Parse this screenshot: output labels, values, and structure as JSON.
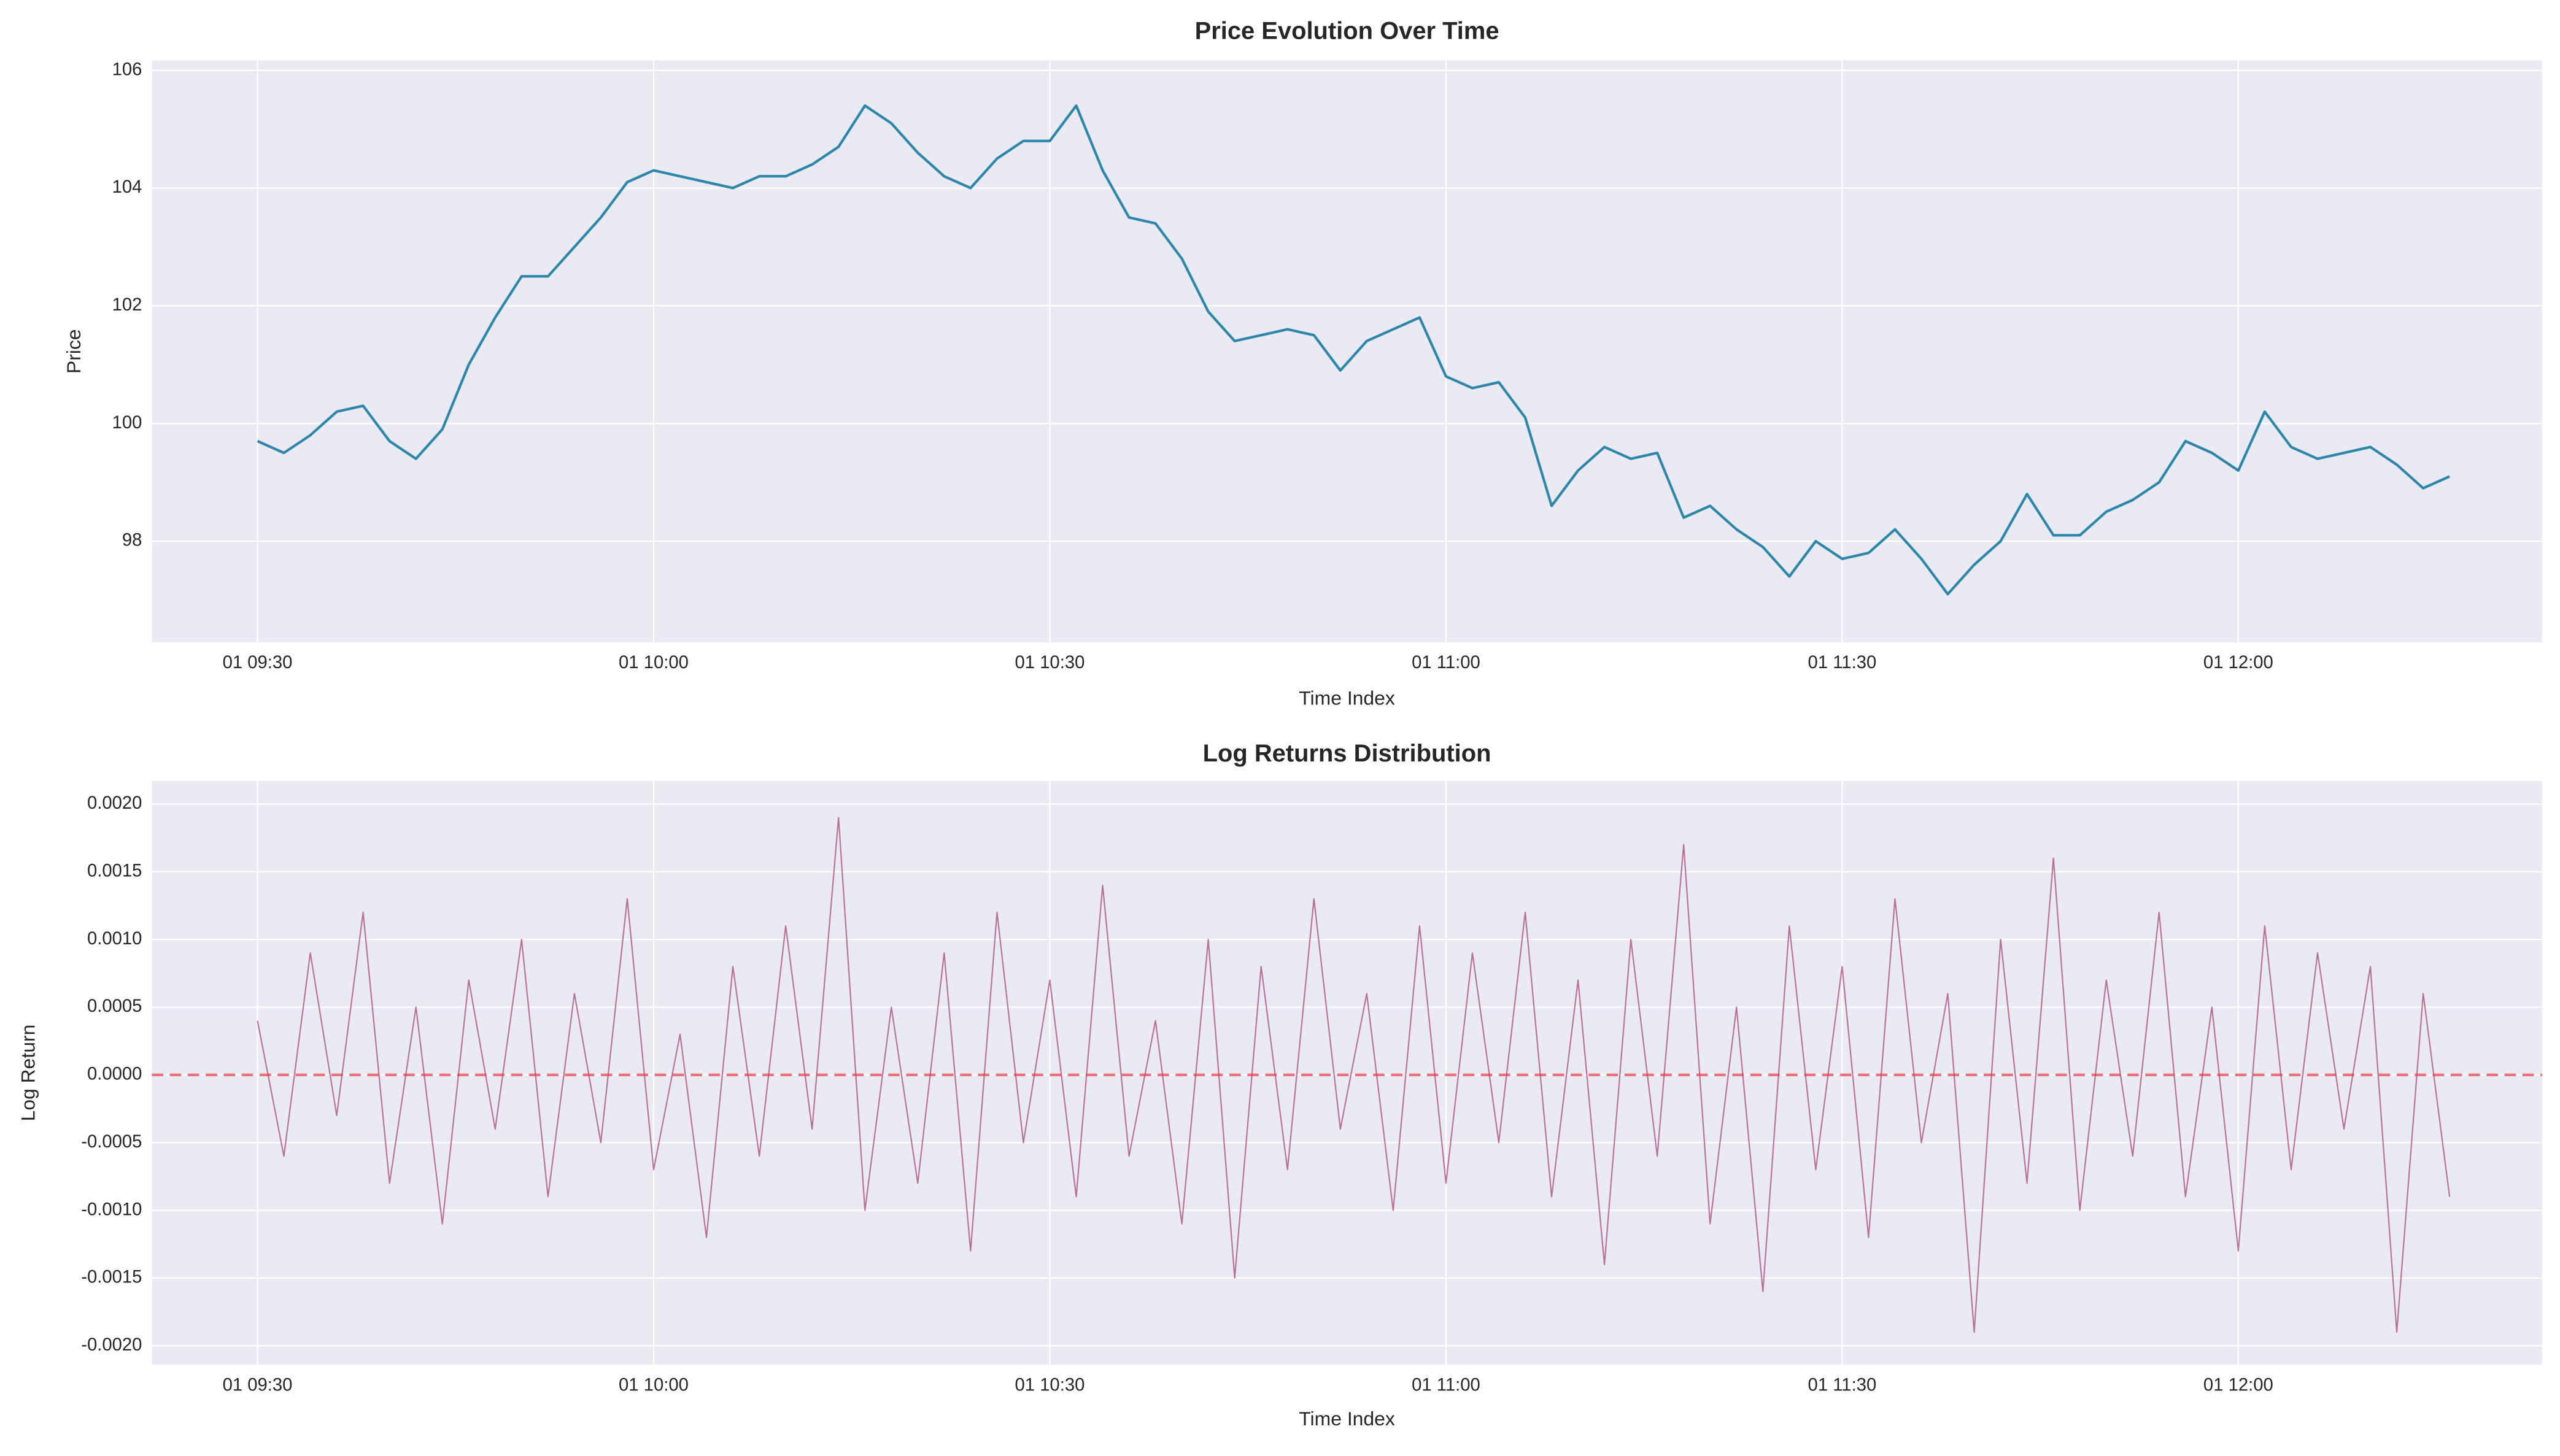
{
  "chart_data": [
    {
      "type": "line",
      "title": "Price Evolution Over Time",
      "xlabel": "Time Index",
      "ylabel": "Price",
      "color": "#2e86ab",
      "line_width": 1.6,
      "grid": true,
      "x": [
        "01 09:30",
        "01 09:32",
        "01 09:34",
        "01 09:36",
        "01 09:38",
        "01 09:40",
        "01 09:42",
        "01 09:44",
        "01 09:46",
        "01 09:48",
        "01 09:50",
        "01 09:52",
        "01 09:54",
        "01 09:56",
        "01 09:58",
        "01 10:00",
        "01 10:02",
        "01 10:04",
        "01 10:06",
        "01 10:08",
        "01 10:10",
        "01 10:12",
        "01 10:14",
        "01 10:16",
        "01 10:18",
        "01 10:20",
        "01 10:22",
        "01 10:24",
        "01 10:26",
        "01 10:28",
        "01 10:30",
        "01 10:32",
        "01 10:34",
        "01 10:36",
        "01 10:38",
        "01 10:40",
        "01 10:42",
        "01 10:44",
        "01 10:46",
        "01 10:48",
        "01 10:50",
        "01 10:52",
        "01 10:54",
        "01 10:56",
        "01 10:58",
        "01 11:00",
        "01 11:02",
        "01 11:04",
        "01 11:06",
        "01 11:08",
        "01 11:10",
        "01 11:12",
        "01 11:14",
        "01 11:16",
        "01 11:18",
        "01 11:20",
        "01 11:22",
        "01 11:24",
        "01 11:26",
        "01 11:28",
        "01 11:30",
        "01 11:32",
        "01 11:34",
        "01 11:36",
        "01 11:38",
        "01 11:40",
        "01 11:42",
        "01 11:44",
        "01 11:46",
        "01 11:48",
        "01 11:50",
        "01 11:52",
        "01 11:54",
        "01 11:56",
        "01 11:58",
        "01 12:00",
        "01 12:02",
        "01 12:04",
        "01 12:06",
        "01 12:08",
        "01 12:10",
        "01 12:12",
        "01 12:14",
        "01 12:16"
      ],
      "values": [
        99.7,
        99.5,
        99.8,
        100.2,
        100.3,
        99.7,
        99.4,
        99.9,
        101.0,
        101.8,
        102.5,
        102.5,
        103.0,
        103.5,
        104.1,
        104.3,
        104.2,
        104.1,
        104.0,
        104.2,
        104.2,
        104.4,
        104.7,
        105.4,
        105.1,
        104.6,
        104.2,
        104.0,
        104.5,
        104.8,
        104.8,
        105.4,
        104.3,
        103.5,
        103.4,
        102.8,
        101.9,
        101.4,
        101.5,
        101.6,
        101.5,
        100.9,
        101.4,
        101.6,
        101.8,
        100.8,
        100.6,
        100.7,
        100.1,
        98.6,
        99.2,
        99.6,
        99.4,
        99.5,
        98.4,
        98.6,
        98.2,
        97.9,
        97.4,
        98.0,
        97.7,
        97.8,
        98.2,
        97.7,
        97.1,
        97.6,
        98.0,
        98.8,
        98.1,
        98.1,
        98.5,
        98.7,
        99.0,
        99.7,
        99.5,
        99.2,
        100.2,
        99.6,
        99.4,
        99.5,
        99.6,
        99.3,
        98.9,
        99.1
      ],
      "xlim": [
        "01 09:22",
        "01 12:23"
      ],
      "xticks": [
        "01 09:30",
        "01 10:00",
        "01 10:30",
        "01 11:00",
        "01 11:30",
        "01 12:00"
      ],
      "ylim": [
        96.28,
        106.17
      ],
      "yticks": [
        98,
        100,
        102,
        104,
        106
      ]
    },
    {
      "type": "line",
      "title": "Log Returns Distribution",
      "xlabel": "Time Index",
      "ylabel": "Log Return",
      "color": "#a23b72",
      "opacity": 0.7,
      "line_width": 0.8,
      "grid": true,
      "hline": {
        "value": 0,
        "color": "#e63946",
        "style": "dashed"
      },
      "x": [
        "01 09:30",
        "01 09:32",
        "01 09:34",
        "01 09:36",
        "01 09:38",
        "01 09:40",
        "01 09:42",
        "01 09:44",
        "01 09:46",
        "01 09:48",
        "01 09:50",
        "01 09:52",
        "01 09:54",
        "01 09:56",
        "01 09:58",
        "01 10:00",
        "01 10:02",
        "01 10:04",
        "01 10:06",
        "01 10:08",
        "01 10:10",
        "01 10:12",
        "01 10:14",
        "01 10:16",
        "01 10:18",
        "01 10:20",
        "01 10:22",
        "01 10:24",
        "01 10:26",
        "01 10:28",
        "01 10:30",
        "01 10:32",
        "01 10:34",
        "01 10:36",
        "01 10:38",
        "01 10:40",
        "01 10:42",
        "01 10:44",
        "01 10:46",
        "01 10:48",
        "01 10:50",
        "01 10:52",
        "01 10:54",
        "01 10:56",
        "01 10:58",
        "01 11:00",
        "01 11:02",
        "01 11:04",
        "01 11:06",
        "01 11:08",
        "01 11:10",
        "01 11:12",
        "01 11:14",
        "01 11:16",
        "01 11:18",
        "01 11:20",
        "01 11:22",
        "01 11:24",
        "01 11:26",
        "01 11:28",
        "01 11:30",
        "01 11:32",
        "01 11:34",
        "01 11:36",
        "01 11:38",
        "01 11:40",
        "01 11:42",
        "01 11:44",
        "01 11:46",
        "01 11:48",
        "01 11:50",
        "01 11:52",
        "01 11:54",
        "01 11:56",
        "01 11:58",
        "01 12:00",
        "01 12:02",
        "01 12:04",
        "01 12:06",
        "01 12:08",
        "01 12:10",
        "01 12:12",
        "01 12:14",
        "01 12:16"
      ],
      "values": [
        0.0004,
        -0.0006,
        0.0009,
        -0.0003,
        0.0012,
        -0.0008,
        0.0005,
        -0.0011,
        0.0007,
        -0.0004,
        0.001,
        -0.0009,
        0.0006,
        -0.0005,
        0.0013,
        -0.0007,
        0.0003,
        -0.0012,
        0.0008,
        -0.0006,
        0.0011,
        -0.0004,
        0.0019,
        -0.001,
        0.0005,
        -0.0008,
        0.0009,
        -0.0013,
        0.0012,
        -0.0005,
        0.0007,
        -0.0009,
        0.0014,
        -0.0006,
        0.0004,
        -0.0011,
        0.001,
        -0.0015,
        0.0008,
        -0.0007,
        0.0013,
        -0.0004,
        0.0006,
        -0.001,
        0.0011,
        -0.0008,
        0.0009,
        -0.0005,
        0.0012,
        -0.0009,
        0.0007,
        -0.0014,
        0.001,
        -0.0006,
        0.0017,
        -0.0011,
        0.0005,
        -0.0016,
        0.0011,
        -0.0007,
        0.0008,
        -0.0012,
        0.0013,
        -0.0005,
        0.0006,
        -0.0019,
        0.001,
        -0.0008,
        0.0016,
        -0.001,
        0.0007,
        -0.0006,
        0.0012,
        -0.0009,
        0.0005,
        -0.0013,
        0.0011,
        -0.0007,
        0.0009,
        -0.0004,
        0.0008,
        -0.0019,
        0.0006,
        -0.0009
      ],
      "xlim": [
        "01 09:22",
        "01 12:23"
      ],
      "xticks": [
        "01 09:30",
        "01 10:00",
        "01 10:30",
        "01 11:00",
        "01 11:30",
        "01 12:00"
      ],
      "ylim": [
        -0.00214,
        0.00217
      ],
      "yticks": [
        {
          "value": -0.002,
          "label": "-0.0020"
        },
        {
          "value": -0.0015,
          "label": "-0.0015"
        },
        {
          "value": -0.001,
          "label": "-0.0010"
        },
        {
          "value": -0.0005,
          "label": "-0.0005"
        },
        {
          "value": 0,
          "label": "0.0000"
        },
        {
          "value": 0.0005,
          "label": "0.0005"
        },
        {
          "value": 0.001,
          "label": "0.0010"
        },
        {
          "value": 0.0015,
          "label": "0.0015"
        },
        {
          "value": 0.002,
          "label": "0.0020"
        }
      ]
    }
  ]
}
